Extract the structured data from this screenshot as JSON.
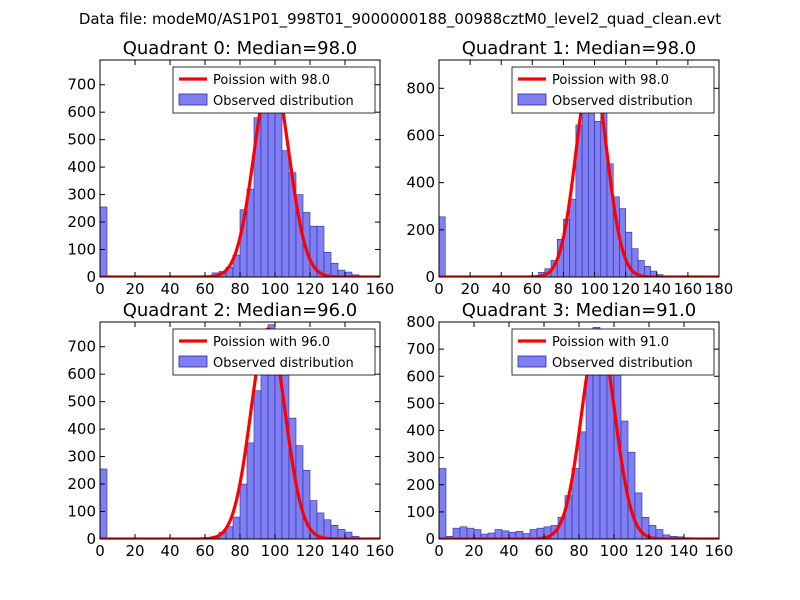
{
  "figure": {
    "suptitle": "Data file: modeM0/AS1P01_998T01_9000000188_00988cztM0_level2_quad_clean.evt"
  },
  "colors": {
    "bar_fill": "#7f7ff2",
    "bar_edge": "#2a2aa0",
    "poisson_line": "#ff0000",
    "axes": "#000000"
  },
  "chart_data": [
    {
      "type": "bar",
      "title": "Quadrant 0: Median=98.0",
      "median": 98.0,
      "bin_width": 4,
      "xlim": [
        0,
        160
      ],
      "ylim": [
        0,
        790
      ],
      "xticks": [
        0,
        20,
        40,
        60,
        80,
        100,
        120,
        140,
        160
      ],
      "xtick_labels": [
        "0",
        "20",
        "40",
        "60",
        "80",
        "100",
        "120",
        "140",
        "160"
      ],
      "yticks": [
        0,
        100,
        200,
        300,
        400,
        500,
        600,
        700
      ],
      "ytick_labels": [
        "0",
        "100",
        "200",
        "300",
        "400",
        "500",
        "600",
        "700"
      ],
      "legend": [
        "Poission with 98.0",
        "Observed distribution"
      ],
      "bins": [
        [
          0,
          255
        ],
        [
          60,
          3
        ],
        [
          64,
          15
        ],
        [
          68,
          20
        ],
        [
          72,
          35
        ],
        [
          76,
          80
        ],
        [
          80,
          245
        ],
        [
          84,
          320
        ],
        [
          88,
          580
        ],
        [
          92,
          660
        ],
        [
          96,
          650
        ],
        [
          100,
          620
        ],
        [
          104,
          460
        ],
        [
          108,
          380
        ],
        [
          112,
          300
        ],
        [
          116,
          235
        ],
        [
          120,
          185
        ],
        [
          124,
          185
        ],
        [
          128,
          90
        ],
        [
          132,
          50
        ],
        [
          136,
          25
        ],
        [
          140,
          18
        ],
        [
          144,
          8
        ]
      ],
      "poisson": {
        "mean": 98.0,
        "peak": 750,
        "sigma": 9.9
      }
    },
    {
      "type": "bar",
      "title": "Quadrant 1: Median=98.0",
      "median": 98.0,
      "bin_width": 4,
      "xlim": [
        0,
        180
      ],
      "ylim": [
        0,
        920
      ],
      "xticks": [
        0,
        20,
        40,
        60,
        80,
        100,
        120,
        140,
        160,
        180
      ],
      "xtick_labels": [
        "0",
        "20",
        "40",
        "60",
        "80",
        "100",
        "120",
        "140",
        "160",
        "180"
      ],
      "yticks": [
        0,
        200,
        400,
        600,
        800
      ],
      "ytick_labels": [
        "0",
        "200",
        "400",
        "600",
        "800"
      ],
      "legend": [
        "Poission with 98.0",
        "Observed distribution"
      ],
      "bins": [
        [
          0,
          255
        ],
        [
          60,
          5
        ],
        [
          64,
          20
        ],
        [
          68,
          35
        ],
        [
          72,
          70
        ],
        [
          76,
          160
        ],
        [
          80,
          245
        ],
        [
          84,
          330
        ],
        [
          88,
          645
        ],
        [
          92,
          760
        ],
        [
          96,
          740
        ],
        [
          100,
          660
        ],
        [
          104,
          700
        ],
        [
          108,
          480
        ],
        [
          112,
          340
        ],
        [
          116,
          290
        ],
        [
          120,
          190
        ],
        [
          124,
          120
        ],
        [
          128,
          70
        ],
        [
          132,
          45
        ],
        [
          136,
          25
        ],
        [
          140,
          10
        ]
      ],
      "poisson": {
        "mean": 98.0,
        "peak": 880,
        "sigma": 9.9
      }
    },
    {
      "type": "bar",
      "title": "Quadrant 2: Median=96.0",
      "median": 96.0,
      "bin_width": 4,
      "xlim": [
        0,
        160
      ],
      "ylim": [
        0,
        790
      ],
      "xticks": [
        0,
        20,
        40,
        60,
        80,
        100,
        120,
        140,
        160
      ],
      "xtick_labels": [
        "0",
        "20",
        "40",
        "60",
        "80",
        "100",
        "120",
        "140",
        "160"
      ],
      "yticks": [
        0,
        100,
        200,
        300,
        400,
        500,
        600,
        700
      ],
      "ytick_labels": [
        "0",
        "100",
        "200",
        "300",
        "400",
        "500",
        "600",
        "700"
      ],
      "legend": [
        "Poission with 96.0",
        "Observed distribution"
      ],
      "bins": [
        [
          0,
          255
        ],
        [
          60,
          2
        ],
        [
          64,
          10
        ],
        [
          68,
          25
        ],
        [
          72,
          45
        ],
        [
          76,
          80
        ],
        [
          80,
          200
        ],
        [
          84,
          350
        ],
        [
          88,
          540
        ],
        [
          92,
          700
        ],
        [
          96,
          780
        ],
        [
          100,
          760
        ],
        [
          104,
          640
        ],
        [
          108,
          440
        ],
        [
          112,
          340
        ],
        [
          116,
          250
        ],
        [
          120,
          140
        ],
        [
          124,
          95
        ],
        [
          128,
          70
        ],
        [
          132,
          50
        ],
        [
          136,
          35
        ],
        [
          140,
          25
        ],
        [
          144,
          10
        ]
      ],
      "poisson": {
        "mean": 96.0,
        "peak": 765,
        "sigma": 9.8
      }
    },
    {
      "type": "bar",
      "title": "Quadrant 3: Median=91.0",
      "median": 91.0,
      "bin_width": 4,
      "xlim": [
        0,
        160
      ],
      "ylim": [
        0,
        800
      ],
      "xticks": [
        0,
        20,
        40,
        60,
        80,
        100,
        120,
        140,
        160
      ],
      "xtick_labels": [
        "0",
        "20",
        "40",
        "60",
        "80",
        "100",
        "120",
        "140",
        "160"
      ],
      "yticks": [
        0,
        100,
        200,
        300,
        400,
        500,
        600,
        700,
        800
      ],
      "ytick_labels": [
        "0",
        "100",
        "200",
        "300",
        "400",
        "500",
        "600",
        "700",
        "800"
      ],
      "legend": [
        "Poission with 91.0",
        "Observed distribution"
      ],
      "bins": [
        [
          0,
          260
        ],
        [
          4,
          10
        ],
        [
          8,
          40
        ],
        [
          12,
          45
        ],
        [
          16,
          40
        ],
        [
          20,
          35
        ],
        [
          24,
          18
        ],
        [
          28,
          22
        ],
        [
          32,
          35
        ],
        [
          36,
          30
        ],
        [
          40,
          25
        ],
        [
          44,
          28
        ],
        [
          48,
          20
        ],
        [
          52,
          35
        ],
        [
          56,
          40
        ],
        [
          60,
          45
        ],
        [
          64,
          50
        ],
        [
          68,
          80
        ],
        [
          72,
          160
        ],
        [
          76,
          260
        ],
        [
          80,
          395
        ],
        [
          84,
          610
        ],
        [
          88,
          780
        ],
        [
          92,
          660
        ],
        [
          96,
          765
        ],
        [
          100,
          640
        ],
        [
          104,
          435
        ],
        [
          108,
          320
        ],
        [
          112,
          170
        ],
        [
          116,
          80
        ],
        [
          120,
          50
        ],
        [
          124,
          35
        ],
        [
          128,
          15
        ],
        [
          132,
          10
        ],
        [
          136,
          8
        ],
        [
          140,
          5
        ]
      ],
      "poisson": {
        "mean": 91.0,
        "peak": 765,
        "sigma": 9.5
      }
    }
  ]
}
